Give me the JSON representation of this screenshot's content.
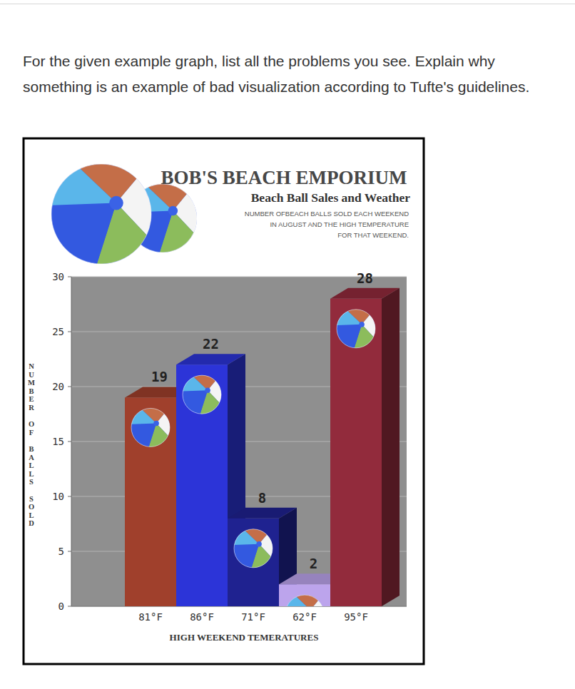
{
  "page": {
    "question": "For the given example graph, list all the problems you see. Explain why something is an example of bad visualization according to Tufte's guidelines."
  },
  "chart_data": {
    "type": "bar",
    "title": "BOB'S BEACH EMPORIUM",
    "subtitle": "Beach Ball Sales and Weather",
    "annotation": [
      "NUMBER OFBEACH BALLS SOLD EACH WEEKEND",
      "IN AUGUST AND THE HIGH TEMPERATURE",
      "FOR THAT WEEKEND."
    ],
    "categories": [
      "81°F",
      "86°F",
      "71°F",
      "62°F",
      "95°F"
    ],
    "values": [
      19,
      22,
      8,
      2,
      28
    ],
    "colors": [
      "#a0402c",
      "#2c34d8",
      "#1f2290",
      "#bca4ec",
      "#922b3c"
    ],
    "x_label": "HIGH WEEKEND TEMERATURES",
    "y_label": "NUMBER OF BALLS SOLD",
    "ylim": [
      0,
      30
    ],
    "yticks": [
      0,
      5,
      10,
      15,
      20,
      25,
      30
    ],
    "grid": true,
    "data_labels": true
  }
}
